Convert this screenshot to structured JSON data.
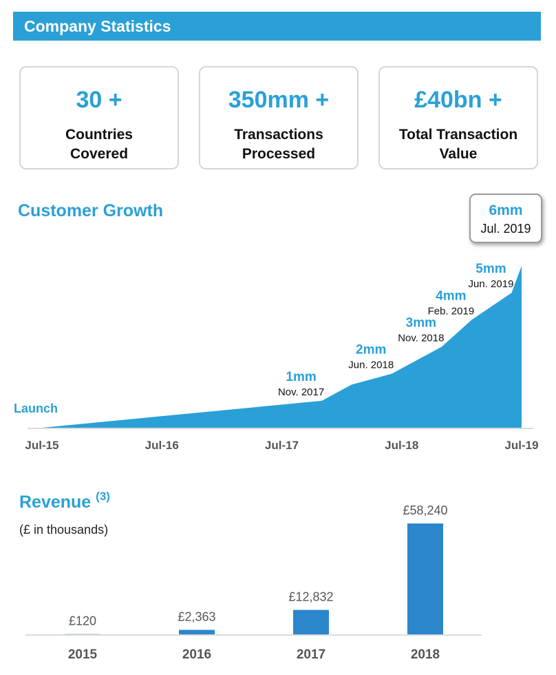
{
  "header": {
    "title": "Company Statistics"
  },
  "stats": [
    {
      "value": "30 +",
      "label_line1": "Countries",
      "label_line2": "Covered"
    },
    {
      "value": "350mm +",
      "label_line1": "Transactions",
      "label_line2": "Processed"
    },
    {
      "value": "£40bn +",
      "label_line1": "Total Transaction",
      "label_line2": "Value"
    }
  ],
  "customer_growth": {
    "title": "Customer Growth",
    "launch_label": "Launch",
    "callout": {
      "value": "6mm",
      "date": "Jul. 2019"
    }
  },
  "revenue": {
    "title": "Revenue",
    "footnote": "(3)",
    "unit_note": "(£ in thousands)"
  },
  "colors": {
    "accent": "#2aa0d6",
    "bar": "#2b86cc",
    "header_bg": "#2aa0d6"
  },
  "chart_data": [
    {
      "type": "area",
      "title": "Customer Growth",
      "x_ticks": [
        "Jul-15",
        "Jul-16",
        "Jul-17",
        "Jul-18",
        "Jul-19"
      ],
      "series": [
        {
          "x": [
            "2015-07",
            "2017-11",
            "2018-02",
            "2018-06",
            "2018-11",
            "2019-02",
            "2019-06",
            "2019-07"
          ],
          "y": [
            0,
            1,
            1.6,
            2,
            3,
            4,
            5,
            6
          ]
        }
      ],
      "milestones": [
        {
          "x": "2017-11",
          "value": "1mm",
          "date": "Nov. 2017"
        },
        {
          "x": "2018-06",
          "value": "2mm",
          "date": "Jun. 2018"
        },
        {
          "x": "2018-11",
          "value": "3mm",
          "date": "Nov. 2018"
        },
        {
          "x": "2019-02",
          "value": "4mm",
          "date": "Feb. 2019"
        },
        {
          "x": "2019-06",
          "value": "5mm",
          "date": "Jun. 2019"
        }
      ],
      "ylim": [
        0,
        6
      ],
      "grid": false
    },
    {
      "type": "bar",
      "title": "Revenue",
      "categories": [
        "2015",
        "2016",
        "2017",
        "2018"
      ],
      "values": [
        120,
        2363,
        12832,
        58240
      ],
      "labels": [
        "£120",
        "£2,363",
        "£12,832",
        "£58,240"
      ],
      "ylim": [
        0,
        58240
      ],
      "grid": false
    }
  ]
}
